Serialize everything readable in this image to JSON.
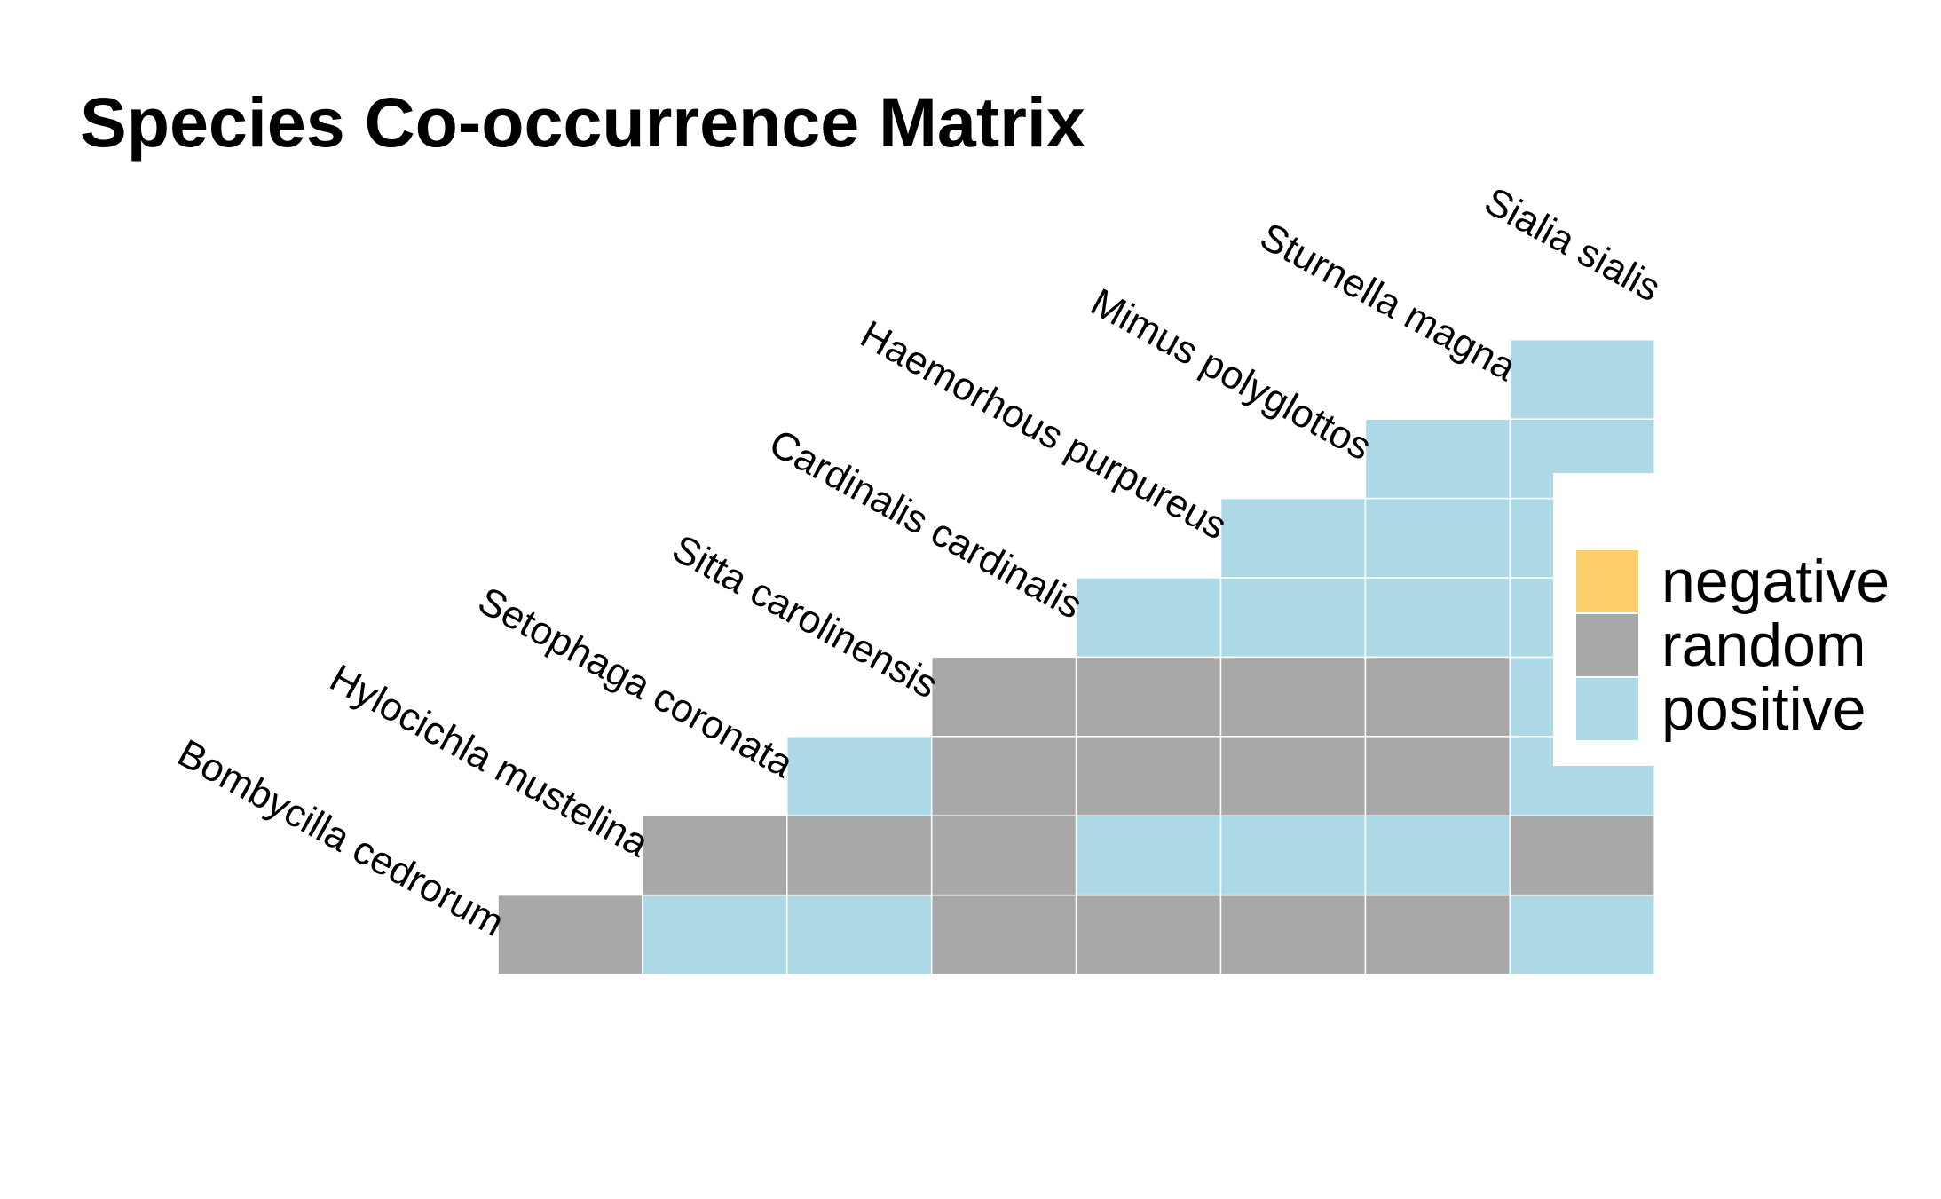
{
  "chart_data": {
    "type": "heatmap",
    "title": "Species Co-occurrence Matrix",
    "species": [
      "Bombycilla cedrorum",
      "Hylocichla mustelina",
      "Setophaga coronata",
      "Sitta carolinensis",
      "Cardinalis cardinalis",
      "Haemorhous purpureus",
      "Mimus polyglottos",
      "Sturnella magna",
      "Sialia sialis"
    ],
    "rows": [
      [
        "random",
        "positive",
        "positive",
        "random",
        "random",
        "random",
        "random",
        "positive"
      ],
      [
        "random",
        "random",
        "random",
        "positive",
        "positive",
        "positive",
        "random"
      ],
      [
        "positive",
        "random",
        "random",
        "random",
        "random",
        "positive"
      ],
      [
        "random",
        "random",
        "random",
        "random",
        "positive"
      ],
      [
        "positive",
        "positive",
        "positive",
        "positive"
      ],
      [
        "positive",
        "positive",
        "positive"
      ],
      [
        "positive",
        "positive"
      ],
      [
        "positive"
      ]
    ],
    "legend": {
      "position": "right",
      "entries": [
        {
          "label": "negative",
          "color": "#FCCF6B"
        },
        {
          "label": "random",
          "color": "#A8A8A8"
        },
        {
          "label": "positive",
          "color": "#ADD8E6"
        }
      ]
    },
    "grid": false
  }
}
